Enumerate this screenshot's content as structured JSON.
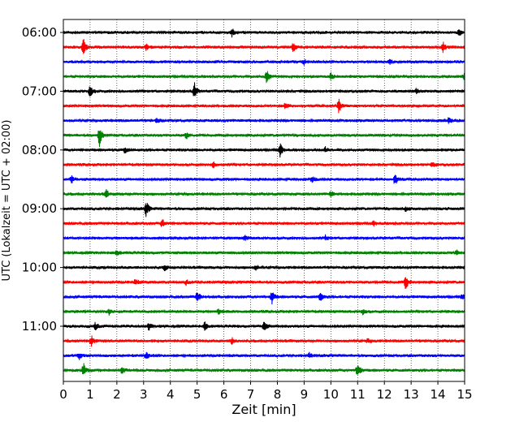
{
  "chart_data": {
    "type": "line",
    "subtype": "helicorder",
    "xlabel": "Zeit  [min]",
    "ylabel": "UTC (Lokalzeit = UTC + 02:00)",
    "xlim": [
      0,
      15
    ],
    "x_ticks": [
      0,
      1,
      2,
      3,
      4,
      5,
      6,
      7,
      8,
      9,
      10,
      11,
      12,
      13,
      14,
      15
    ],
    "y_tick_labels": [
      "06:00",
      "07:00",
      "08:00",
      "09:00",
      "10:00",
      "11:00"
    ],
    "grid": "vertical dotted",
    "trace_colors": [
      "#000000",
      "#ff0000",
      "#0000ff",
      "#008000"
    ],
    "trace_minutes": 15,
    "traces": [
      {
        "start": "06:00",
        "events": [
          {
            "t": 6.3,
            "a": 0.5
          },
          {
            "t": 14.8,
            "a": 0.4
          }
        ]
      },
      {
        "start": "06:15",
        "events": [
          {
            "t": 0.75,
            "a": 1.0
          },
          {
            "t": 8.6,
            "a": 0.6
          },
          {
            "t": 14.2,
            "a": 0.6
          },
          {
            "t": 3.1,
            "a": 0.35
          }
        ]
      },
      {
        "start": "06:30",
        "events": [
          {
            "t": 9.0,
            "a": 0.3
          },
          {
            "t": 12.2,
            "a": 0.3
          }
        ]
      },
      {
        "start": "06:45",
        "events": [
          {
            "t": 7.6,
            "a": 0.9
          },
          {
            "t": 10.0,
            "a": 0.4
          },
          {
            "t": 15.0,
            "a": 0.5
          }
        ]
      },
      {
        "start": "07:00",
        "events": [
          {
            "t": 1.0,
            "a": 0.8
          },
          {
            "t": 4.9,
            "a": 1.0
          },
          {
            "t": 13.2,
            "a": 0.3
          }
        ]
      },
      {
        "start": "07:15",
        "events": [
          {
            "t": 10.3,
            "a": 0.9
          },
          {
            "t": 8.3,
            "a": 0.4
          }
        ]
      },
      {
        "start": "07:30",
        "events": [
          {
            "t": 3.5,
            "a": 0.3
          },
          {
            "t": 14.4,
            "a": 0.3
          }
        ]
      },
      {
        "start": "07:45",
        "events": [
          {
            "t": 1.35,
            "a": 1.3
          },
          {
            "t": 4.6,
            "a": 0.4
          }
        ]
      },
      {
        "start": "08:00",
        "events": [
          {
            "t": 8.1,
            "a": 1.0
          },
          {
            "t": 2.3,
            "a": 0.4
          },
          {
            "t": 9.8,
            "a": 0.3
          }
        ]
      },
      {
        "start": "08:15",
        "events": [
          {
            "t": 5.6,
            "a": 0.4
          },
          {
            "t": 13.8,
            "a": 0.3
          }
        ]
      },
      {
        "start": "08:30",
        "events": [
          {
            "t": 12.4,
            "a": 0.7
          },
          {
            "t": 0.3,
            "a": 0.5
          },
          {
            "t": 9.3,
            "a": 0.4
          }
        ]
      },
      {
        "start": "08:45",
        "events": [
          {
            "t": 1.6,
            "a": 0.5
          },
          {
            "t": 10.0,
            "a": 0.3
          }
        ]
      },
      {
        "start": "09:00",
        "events": [
          {
            "t": 3.1,
            "a": 1.0
          },
          {
            "t": 12.8,
            "a": 0.3
          }
        ]
      },
      {
        "start": "09:15",
        "events": [
          {
            "t": 3.7,
            "a": 0.6
          },
          {
            "t": 11.6,
            "a": 0.3
          }
        ]
      },
      {
        "start": "09:30",
        "events": [
          {
            "t": 9.8,
            "a": 0.3
          },
          {
            "t": 6.8,
            "a": 0.3
          }
        ]
      },
      {
        "start": "09:45",
        "events": [
          {
            "t": 2.0,
            "a": 0.4
          },
          {
            "t": 14.7,
            "a": 0.3
          }
        ]
      },
      {
        "start": "10:00",
        "events": [
          {
            "t": 3.8,
            "a": 0.4
          },
          {
            "t": 7.2,
            "a": 0.3
          }
        ]
      },
      {
        "start": "10:15",
        "events": [
          {
            "t": 12.8,
            "a": 0.9
          },
          {
            "t": 2.7,
            "a": 0.4
          },
          {
            "t": 4.6,
            "a": 0.3
          }
        ]
      },
      {
        "start": "10:30",
        "events": [
          {
            "t": 5.0,
            "a": 0.9
          },
          {
            "t": 7.8,
            "a": 0.8
          },
          {
            "t": 9.6,
            "a": 0.6
          },
          {
            "t": 14.9,
            "a": 0.4
          }
        ]
      },
      {
        "start": "10:45",
        "events": [
          {
            "t": 1.7,
            "a": 0.4
          },
          {
            "t": 5.8,
            "a": 0.3
          },
          {
            "t": 11.2,
            "a": 0.3
          }
        ]
      },
      {
        "start": "11:00",
        "events": [
          {
            "t": 7.5,
            "a": 0.7
          },
          {
            "t": 3.2,
            "a": 0.5
          },
          {
            "t": 5.3,
            "a": 0.6
          },
          {
            "t": 1.2,
            "a": 0.5
          }
        ]
      },
      {
        "start": "11:15",
        "events": [
          {
            "t": 1.05,
            "a": 0.7
          },
          {
            "t": 6.3,
            "a": 0.4
          },
          {
            "t": 11.4,
            "a": 0.3
          }
        ]
      },
      {
        "start": "11:30",
        "events": [
          {
            "t": 0.6,
            "a": 0.4
          },
          {
            "t": 3.1,
            "a": 0.4
          },
          {
            "t": 9.2,
            "a": 0.3
          }
        ]
      },
      {
        "start": "11:45",
        "events": [
          {
            "t": 0.75,
            "a": 0.9
          },
          {
            "t": 11.0,
            "a": 1.0
          },
          {
            "t": 2.2,
            "a": 0.4
          }
        ]
      }
    ]
  }
}
